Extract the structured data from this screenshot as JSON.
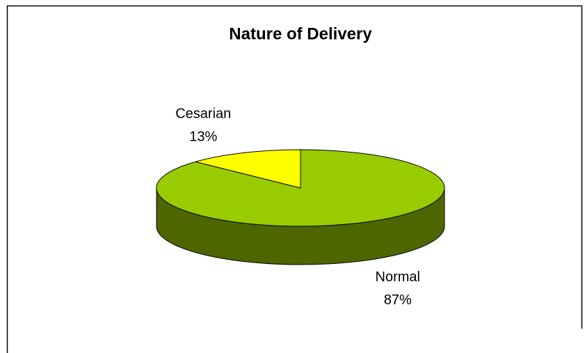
{
  "chart_data": {
    "type": "pie",
    "title": "Nature of Delivery",
    "categories": [
      "Normal",
      "Cesarian"
    ],
    "values": [
      87,
      13
    ],
    "value_labels": [
      "87%",
      "13%"
    ],
    "colors": [
      "#99cc00",
      "#ffff00"
    ],
    "side_colors": [
      "#4d6600",
      "#808000"
    ]
  }
}
